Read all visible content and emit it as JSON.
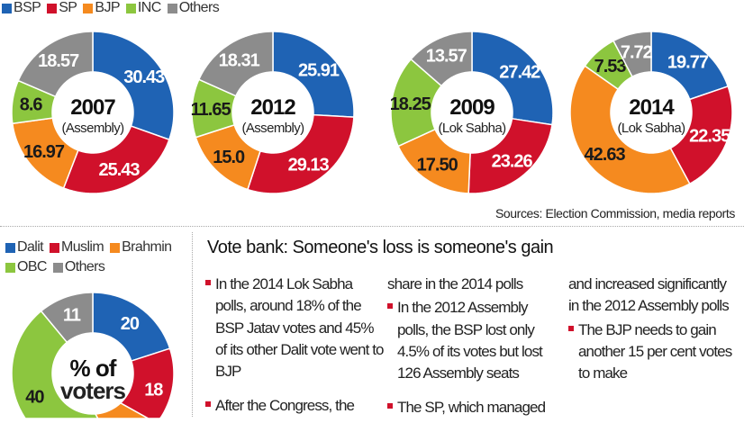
{
  "legend_parties": [
    {
      "label": "BSP",
      "color": "#1f63b4"
    },
    {
      "label": "SP",
      "color": "#d0112b"
    },
    {
      "label": "BJP",
      "color": "#f58a1f"
    },
    {
      "label": "INC",
      "color": "#8cc63f"
    },
    {
      "label": "Others",
      "color": "#8c8c8c"
    }
  ],
  "legend_castes": [
    {
      "label": "Dalit",
      "color": "#1f63b4"
    },
    {
      "label": "Muslim",
      "color": "#d0112b"
    },
    {
      "label": "Brahmin",
      "color": "#f58a1f"
    },
    {
      "label": "OBC",
      "color": "#8cc63f"
    },
    {
      "label": "Others",
      "color": "#8c8c8c"
    }
  ],
  "chart_data": [
    {
      "type": "pie",
      "title": "2007",
      "subtitle": "(Assembly)",
      "categories": [
        "BSP",
        "SP",
        "BJP",
        "INC",
        "Others"
      ],
      "values": [
        30.43,
        25.43,
        16.97,
        8.6,
        18.57
      ],
      "labels": [
        "30.43",
        "25.43",
        "16.97",
        "8.6",
        "18.57"
      ]
    },
    {
      "type": "pie",
      "title": "2012",
      "subtitle": "(Assembly)",
      "categories": [
        "BSP",
        "SP",
        "BJP",
        "INC",
        "Others"
      ],
      "values": [
        25.91,
        29.13,
        15.0,
        11.65,
        18.31
      ],
      "labels": [
        "25.91",
        "29.13",
        "15.0",
        "11.65",
        "18.31"
      ]
    },
    {
      "type": "pie",
      "title": "2009",
      "subtitle": "(Lok Sabha)",
      "categories": [
        "BSP",
        "SP",
        "BJP",
        "INC",
        "Others"
      ],
      "values": [
        27.42,
        23.26,
        17.5,
        18.25,
        13.57
      ],
      "labels": [
        "27.42",
        "23.26",
        "17.50",
        "18.25",
        "13.57"
      ]
    },
    {
      "type": "pie",
      "title": "2014",
      "subtitle": "(Lok Sabha)",
      "categories": [
        "BSP",
        "SP",
        "BJP",
        "INC",
        "Others"
      ],
      "values": [
        19.77,
        22.35,
        42.63,
        7.53,
        7.72
      ],
      "labels": [
        "19.77",
        "22.35",
        "42.63",
        "7.53",
        "7.72"
      ]
    },
    {
      "type": "pie",
      "title": "% of",
      "subtitle": "voters",
      "categories": [
        "Dalit",
        "Muslim",
        "Brahmin",
        "OBC",
        "Others"
      ],
      "values": [
        20,
        18,
        11,
        40,
        11
      ],
      "labels": [
        "20",
        "18",
        "",
        "40",
        "11"
      ]
    }
  ],
  "source": "Sources: Election Commission, media reports",
  "article": {
    "title": "Vote bank: Someone's loss is someone's gain",
    "col1": [
      {
        "bullet": true,
        "text": "In the 2014 Lok Sabha polls, around 18% of the BSP Jatav votes and 45% of its other Dalit vote went to BJP"
      },
      {
        "bullet": true,
        "text": "After the Congress, the"
      }
    ],
    "col2": [
      {
        "bullet": false,
        "text": "share in the 2014 polls"
      },
      {
        "bullet": true,
        "text": "In the 2012 Assembly polls, the BSP lost only 4.5% of its votes but lost 126 Assembly seats"
      },
      {
        "bullet": true,
        "text": "The SP, which managed"
      }
    ],
    "col3": [
      {
        "bullet": false,
        "text": "and increased significantly in the 2012 Assembly polls"
      },
      {
        "bullet": true,
        "text": "The BJP needs to gain another 15 per cent votes to make"
      }
    ]
  }
}
